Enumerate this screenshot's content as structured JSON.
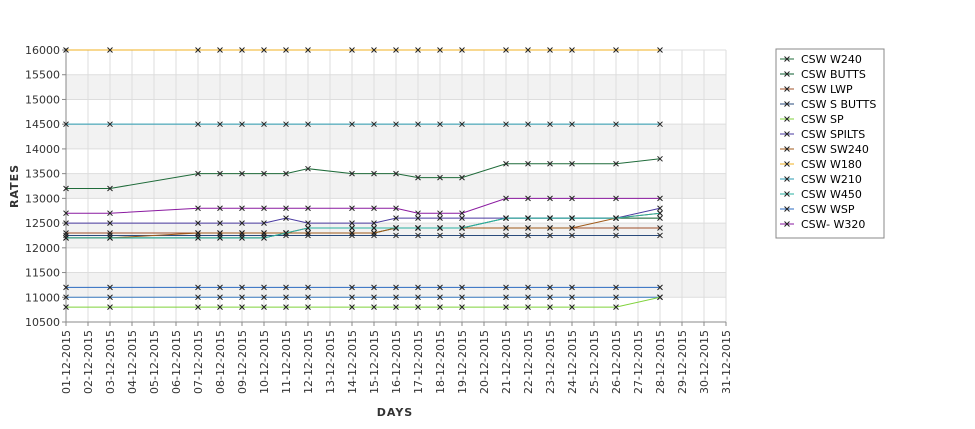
{
  "chart_data": {
    "type": "line",
    "xlabel": "DAYS",
    "ylabel": "RATES",
    "ylim": [
      10500,
      16000
    ],
    "ytick_step": 500,
    "x_categories": [
      "01-12-2015",
      "02-12-2015",
      "03-12-2015",
      "04-12-2015",
      "05-12-2015",
      "06-12-2015",
      "07-12-2015",
      "08-12-2015",
      "09-12-2015",
      "10-12-2015",
      "11-12-2015",
      "12-12-2015",
      "13-12-2015",
      "14-12-2015",
      "15-12-2015",
      "16-12-2015",
      "17-12-2015",
      "18-12-2015",
      "19-12-2015",
      "20-12-2015",
      "21-12-2015",
      "22-12-2015",
      "23-12-2015",
      "24-12-2015",
      "25-12-2015",
      "26-12-2015",
      "27-12-2015",
      "28-12-2015",
      "29-12-2015",
      "30-12-2015",
      "31-12-2015"
    ],
    "observed_dates": [
      "01-12-2015",
      "03-12-2015",
      "07-12-2015",
      "08-12-2015",
      "09-12-2015",
      "10-12-2015",
      "11-12-2015",
      "12-12-2015",
      "14-12-2015",
      "15-12-2015",
      "16-12-2015",
      "17-12-2015",
      "18-12-2015",
      "19-12-2015",
      "21-12-2015",
      "22-12-2015",
      "23-12-2015",
      "24-12-2015",
      "26-12-2015",
      "28-12-2015"
    ],
    "grid": true,
    "legend_position": "right",
    "series": [
      {
        "name": "CSW  W240",
        "color": "#1f6b3a",
        "values": [
          13200,
          13200,
          13500,
          13500,
          13500,
          13500,
          13500,
          13600,
          13500,
          13500,
          13500,
          13420,
          13420,
          13420,
          13700,
          13700,
          13700,
          13700,
          13700,
          13800
        ]
      },
      {
        "name": "CSW BUTTS",
        "color": "#0b5e2f",
        "values": [
          12200,
          12200,
          12200,
          12200,
          12200,
          12200,
          12300,
          12300,
          12300,
          12300,
          12400,
          12400,
          12400,
          12400,
          12600,
          12600,
          12600,
          12600,
          12600,
          12600
        ]
      },
      {
        "name": "CSW LWP",
        "color": "#a0502a",
        "values": [
          12300,
          12300,
          12300,
          12300,
          12300,
          12300,
          12300,
          12400,
          12400,
          12400,
          12400,
          12400,
          12400,
          12400,
          12400,
          12400,
          12400,
          12400,
          12400,
          12400
        ]
      },
      {
        "name": "CSW S BUTTS",
        "color": "#2a4b7c",
        "values": [
          12250,
          12250,
          12250,
          12250,
          12250,
          12250,
          12250,
          12250,
          12250,
          12250,
          12250,
          12250,
          12250,
          12250,
          12250,
          12250,
          12250,
          12250,
          12250,
          12250
        ]
      },
      {
        "name": "CSW SP",
        "color": "#7fd23a",
        "values": [
          10800,
          10800,
          10800,
          10800,
          10800,
          10800,
          10800,
          10800,
          10800,
          10800,
          10800,
          10800,
          10800,
          10800,
          10800,
          10800,
          10800,
          10800,
          10800,
          11000
        ]
      },
      {
        "name": "CSW SPILTS",
        "color": "#4a3aa0",
        "values": [
          12500,
          12500,
          12500,
          12500,
          12500,
          12500,
          12600,
          12500,
          12500,
          12500,
          12600,
          12600,
          12600,
          12600,
          12600,
          12600,
          12600,
          12600,
          12600,
          12800
        ]
      },
      {
        "name": "CSW SW240",
        "color": "#a05a1a",
        "values": [
          12200,
          12200,
          12300,
          12300,
          12300,
          12300,
          12300,
          12300,
          12300,
          12300,
          12400,
          12400,
          12400,
          12400,
          12400,
          12400,
          12400,
          12400,
          12600,
          12700
        ]
      },
      {
        "name": "CSW W180",
        "color": "#f0b020",
        "values": [
          16000,
          16000,
          16000,
          16000,
          16000,
          16000,
          16000,
          16000,
          16000,
          16000,
          16000,
          16000,
          16000,
          16000,
          16000,
          16000,
          16000,
          16000,
          16000,
          16000
        ]
      },
      {
        "name": "CSW W210",
        "color": "#2a9ab0",
        "values": [
          14500,
          14500,
          14500,
          14500,
          14500,
          14500,
          14500,
          14500,
          14500,
          14500,
          14500,
          14500,
          14500,
          14500,
          14500,
          14500,
          14500,
          14500,
          14500,
          14500
        ]
      },
      {
        "name": "CSW W450",
        "color": "#2ab0a0",
        "values": [
          12200,
          12200,
          12200,
          12200,
          12200,
          12200,
          12300,
          12400,
          12400,
          12400,
          12400,
          12400,
          12400,
          12400,
          12600,
          12600,
          12600,
          12600,
          12600,
          12700
        ]
      },
      {
        "name": "CSW WSP",
        "color": "#2a6ac0",
        "values": [
          11200,
          11200,
          11200,
          11200,
          11200,
          11200,
          11200,
          11200,
          11200,
          11200,
          11200,
          11200,
          11200,
          11200,
          11200,
          11200,
          11200,
          11200,
          11200,
          11200
        ]
      },
      {
        "name": "CSW- W320",
        "color": "#8a1aa0",
        "values": [
          12700,
          12700,
          12800,
          12800,
          12800,
          12800,
          12800,
          12800,
          12800,
          12800,
          12800,
          12700,
          12700,
          12700,
          13000,
          13000,
          13000,
          13000,
          13000,
          13000
        ]
      }
    ],
    "extra_series_at_11000": {
      "color": "#3a7ac0",
      "values": [
        11000,
        11000,
        11000,
        11000,
        11000,
        11000,
        11000,
        11000,
        11000,
        11000,
        11000,
        11000,
        11000,
        11000,
        11000,
        11000,
        11000,
        11000,
        11000,
        11000
      ]
    }
  }
}
